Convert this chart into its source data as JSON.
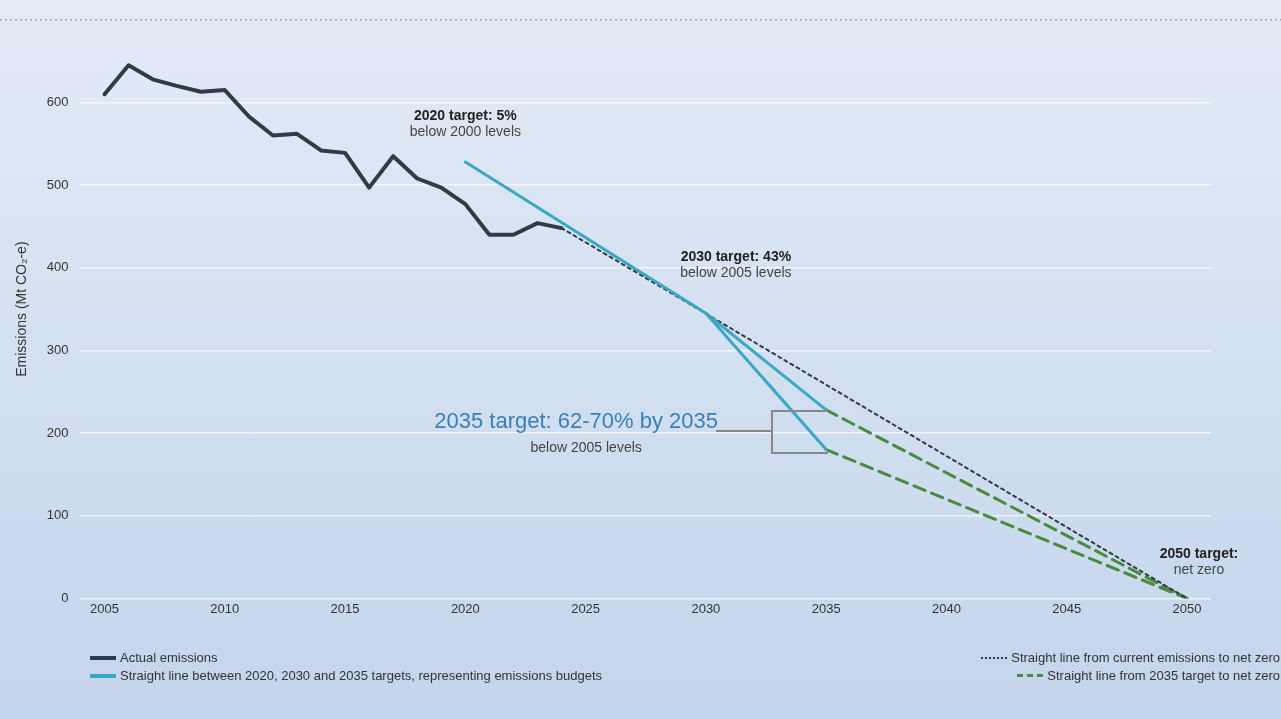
{
  "chart_data": {
    "type": "line",
    "ylabel": "Emissions (Mt CO₂-e)",
    "xlim": [
      2004,
      2051
    ],
    "xticks": [
      2005,
      2010,
      2015,
      2020,
      2025,
      2030,
      2035,
      2040,
      2045,
      2050
    ],
    "ylim": [
      0,
      700
    ],
    "yticks": [
      0,
      100,
      200,
      300,
      400,
      500,
      600
    ],
    "grid": "y",
    "legend": "bottom",
    "marker": "none",
    "series": [
      {
        "name": "Actual emissions",
        "color": "#2f3b4a",
        "line_style": "solid",
        "x": [
          2005,
          2006,
          2007,
          2008,
          2009,
          2010,
          2011,
          2012,
          2013,
          2014,
          2015,
          2016,
          2017,
          2018,
          2019,
          2020,
          2021,
          2022,
          2023,
          2024
        ],
        "values": [
          610,
          645,
          628,
          620,
          613,
          615,
          583,
          560,
          562,
          542,
          539,
          497,
          535,
          508,
          497,
          477,
          440,
          440,
          454,
          448
        ]
      },
      {
        "name": "Straight line between 2020, 2030 and 2035 targets, representing emissions budgets",
        "color": "#3aa8c4",
        "line_style": "solid",
        "x": [
          2020,
          2030,
          2035
        ],
        "values": [
          528,
          345,
          228
        ]
      },
      {
        "color": "#3aa8c4",
        "line_style": "solid",
        "x": [
          2030,
          2035
        ],
        "values": [
          345,
          180
        ]
      },
      {
        "name": "Straight line from current emissions to net zero",
        "color": "#333a45",
        "line_style": "dotted",
        "x": [
          2024,
          2050
        ],
        "values": [
          448,
          0
        ]
      },
      {
        "name": "Straight line from 2035 target to net zero",
        "color": "#4a8a3c",
        "line_style": "dashed",
        "x": [
          2035,
          2050
        ],
        "values": [
          228,
          0
        ]
      },
      {
        "color": "#4a8a3c",
        "line_style": "dashed",
        "x": [
          2035,
          2050
        ],
        "values": [
          180,
          0
        ]
      }
    ],
    "annotations": [
      {
        "text": "2020 target: 5%\nbelow 2000 levels",
        "x": 2020,
        "y": 528
      },
      {
        "text": "2030 target: 43%\nbelow 2005 levels",
        "x": 2030,
        "y": 345
      },
      "2035 target: 62-70% by 2035\nbelow 2005 levels",
      {
        "text": "2050 target:\nnet zero",
        "x": 2050,
        "y": 0
      }
    ]
  }
}
